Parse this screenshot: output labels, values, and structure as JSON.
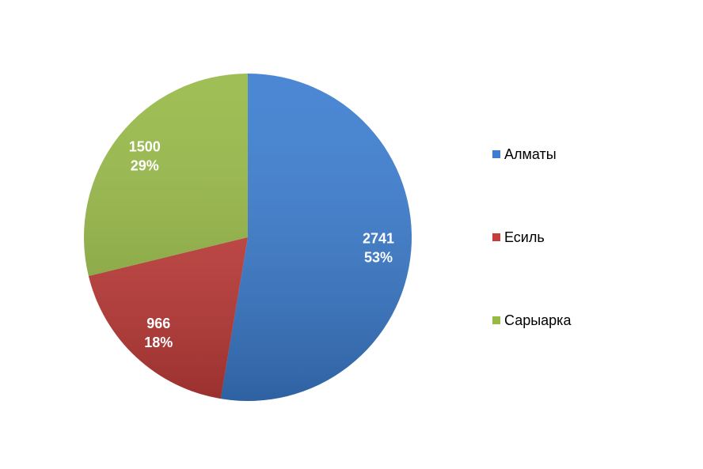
{
  "chart_data": {
    "type": "pie",
    "categories": [
      "Алматы",
      "Есиль",
      "Сарыарка"
    ],
    "values": [
      2741,
      966,
      1500
    ],
    "percent_labels": [
      "53%",
      "18%",
      "29%"
    ],
    "colors": [
      "#3b7dd0",
      "#c63e3b",
      "#97b946"
    ],
    "legend": "right"
  }
}
